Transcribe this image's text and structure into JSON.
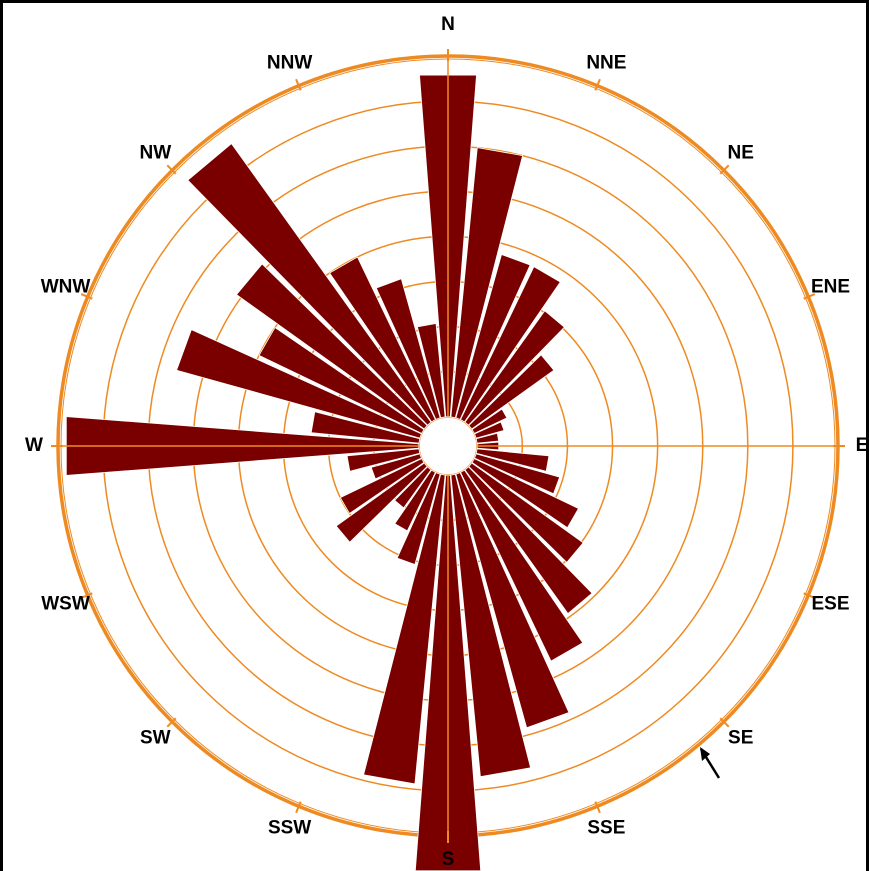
{
  "chart_data": {
    "type": "wind-rose",
    "title": "",
    "sector_count": 36,
    "sector_width_deg": 10,
    "values": [
      9.5,
      7.5,
      4.7,
      4.7,
      3.8,
      2.8,
      1.0,
      0.8,
      0.6,
      0.6,
      2.0,
      2.4,
      3.2,
      3.8,
      4.9,
      5.8,
      7.3,
      8.4,
      11.0,
      8.6,
      2.6,
      1.8,
      1.3,
      3.0,
      2.5,
      1.4,
      2.0,
      9.8,
      3.0,
      7.0,
      5.0,
      6.4,
      9.5,
      5.0,
      4.0,
      2.6
    ],
    "ring_count": 8,
    "inner_calm_ratio": 0.075,
    "max_ring_value": 10.0,
    "compass_labels": [
      "N",
      "NNE",
      "NE",
      "ENE",
      "E",
      "ESE",
      "SE",
      "SSE",
      "S",
      "SSW",
      "SW",
      "WSW",
      "W",
      "WNW",
      "NW",
      "NNW"
    ],
    "colors": {
      "bars": "#7a0000",
      "rings": "#ee8a22",
      "axes": "#ee8a22",
      "labels": "#000000"
    },
    "grid": true
  }
}
